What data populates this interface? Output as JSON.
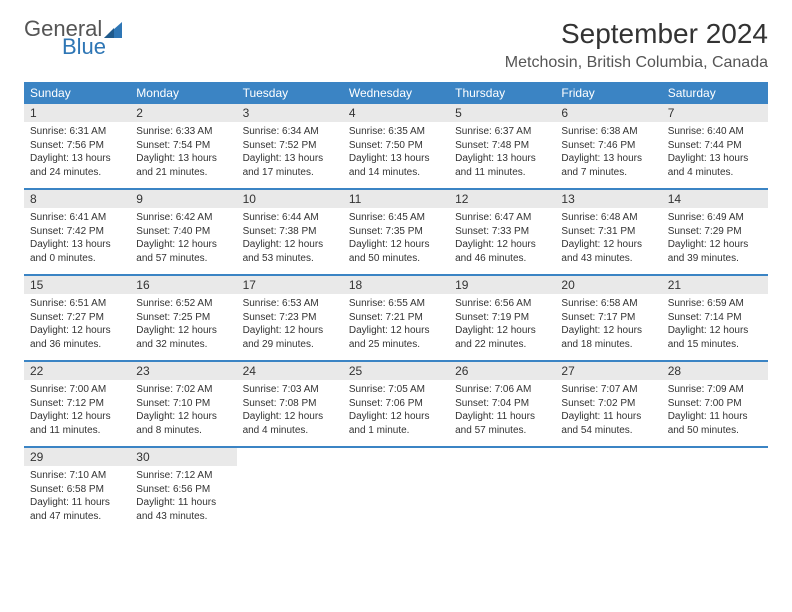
{
  "brand": {
    "text_general": "General",
    "text_blue": "Blue",
    "sail_color": "#2e76b5"
  },
  "title": "September 2024",
  "location": "Metchosin, British Columbia, Canada",
  "colors": {
    "header_bg": "#3b84c4",
    "header_text": "#ffffff",
    "daynum_bg": "#e9e9e9",
    "border": "#3b84c4"
  },
  "weekdays": [
    "Sunday",
    "Monday",
    "Tuesday",
    "Wednesday",
    "Thursday",
    "Friday",
    "Saturday"
  ],
  "weeks": [
    [
      {
        "n": "1",
        "sunrise": "Sunrise: 6:31 AM",
        "sunset": "Sunset: 7:56 PM",
        "d1": "Daylight: 13 hours",
        "d2": "and 24 minutes."
      },
      {
        "n": "2",
        "sunrise": "Sunrise: 6:33 AM",
        "sunset": "Sunset: 7:54 PM",
        "d1": "Daylight: 13 hours",
        "d2": "and 21 minutes."
      },
      {
        "n": "3",
        "sunrise": "Sunrise: 6:34 AM",
        "sunset": "Sunset: 7:52 PM",
        "d1": "Daylight: 13 hours",
        "d2": "and 17 minutes."
      },
      {
        "n": "4",
        "sunrise": "Sunrise: 6:35 AM",
        "sunset": "Sunset: 7:50 PM",
        "d1": "Daylight: 13 hours",
        "d2": "and 14 minutes."
      },
      {
        "n": "5",
        "sunrise": "Sunrise: 6:37 AM",
        "sunset": "Sunset: 7:48 PM",
        "d1": "Daylight: 13 hours",
        "d2": "and 11 minutes."
      },
      {
        "n": "6",
        "sunrise": "Sunrise: 6:38 AM",
        "sunset": "Sunset: 7:46 PM",
        "d1": "Daylight: 13 hours",
        "d2": "and 7 minutes."
      },
      {
        "n": "7",
        "sunrise": "Sunrise: 6:40 AM",
        "sunset": "Sunset: 7:44 PM",
        "d1": "Daylight: 13 hours",
        "d2": "and 4 minutes."
      }
    ],
    [
      {
        "n": "8",
        "sunrise": "Sunrise: 6:41 AM",
        "sunset": "Sunset: 7:42 PM",
        "d1": "Daylight: 13 hours",
        "d2": "and 0 minutes."
      },
      {
        "n": "9",
        "sunrise": "Sunrise: 6:42 AM",
        "sunset": "Sunset: 7:40 PM",
        "d1": "Daylight: 12 hours",
        "d2": "and 57 minutes."
      },
      {
        "n": "10",
        "sunrise": "Sunrise: 6:44 AM",
        "sunset": "Sunset: 7:38 PM",
        "d1": "Daylight: 12 hours",
        "d2": "and 53 minutes."
      },
      {
        "n": "11",
        "sunrise": "Sunrise: 6:45 AM",
        "sunset": "Sunset: 7:35 PM",
        "d1": "Daylight: 12 hours",
        "d2": "and 50 minutes."
      },
      {
        "n": "12",
        "sunrise": "Sunrise: 6:47 AM",
        "sunset": "Sunset: 7:33 PM",
        "d1": "Daylight: 12 hours",
        "d2": "and 46 minutes."
      },
      {
        "n": "13",
        "sunrise": "Sunrise: 6:48 AM",
        "sunset": "Sunset: 7:31 PM",
        "d1": "Daylight: 12 hours",
        "d2": "and 43 minutes."
      },
      {
        "n": "14",
        "sunrise": "Sunrise: 6:49 AM",
        "sunset": "Sunset: 7:29 PM",
        "d1": "Daylight: 12 hours",
        "d2": "and 39 minutes."
      }
    ],
    [
      {
        "n": "15",
        "sunrise": "Sunrise: 6:51 AM",
        "sunset": "Sunset: 7:27 PM",
        "d1": "Daylight: 12 hours",
        "d2": "and 36 minutes."
      },
      {
        "n": "16",
        "sunrise": "Sunrise: 6:52 AM",
        "sunset": "Sunset: 7:25 PM",
        "d1": "Daylight: 12 hours",
        "d2": "and 32 minutes."
      },
      {
        "n": "17",
        "sunrise": "Sunrise: 6:53 AM",
        "sunset": "Sunset: 7:23 PM",
        "d1": "Daylight: 12 hours",
        "d2": "and 29 minutes."
      },
      {
        "n": "18",
        "sunrise": "Sunrise: 6:55 AM",
        "sunset": "Sunset: 7:21 PM",
        "d1": "Daylight: 12 hours",
        "d2": "and 25 minutes."
      },
      {
        "n": "19",
        "sunrise": "Sunrise: 6:56 AM",
        "sunset": "Sunset: 7:19 PM",
        "d1": "Daylight: 12 hours",
        "d2": "and 22 minutes."
      },
      {
        "n": "20",
        "sunrise": "Sunrise: 6:58 AM",
        "sunset": "Sunset: 7:17 PM",
        "d1": "Daylight: 12 hours",
        "d2": "and 18 minutes."
      },
      {
        "n": "21",
        "sunrise": "Sunrise: 6:59 AM",
        "sunset": "Sunset: 7:14 PM",
        "d1": "Daylight: 12 hours",
        "d2": "and 15 minutes."
      }
    ],
    [
      {
        "n": "22",
        "sunrise": "Sunrise: 7:00 AM",
        "sunset": "Sunset: 7:12 PM",
        "d1": "Daylight: 12 hours",
        "d2": "and 11 minutes."
      },
      {
        "n": "23",
        "sunrise": "Sunrise: 7:02 AM",
        "sunset": "Sunset: 7:10 PM",
        "d1": "Daylight: 12 hours",
        "d2": "and 8 minutes."
      },
      {
        "n": "24",
        "sunrise": "Sunrise: 7:03 AM",
        "sunset": "Sunset: 7:08 PM",
        "d1": "Daylight: 12 hours",
        "d2": "and 4 minutes."
      },
      {
        "n": "25",
        "sunrise": "Sunrise: 7:05 AM",
        "sunset": "Sunset: 7:06 PM",
        "d1": "Daylight: 12 hours",
        "d2": "and 1 minute."
      },
      {
        "n": "26",
        "sunrise": "Sunrise: 7:06 AM",
        "sunset": "Sunset: 7:04 PM",
        "d1": "Daylight: 11 hours",
        "d2": "and 57 minutes."
      },
      {
        "n": "27",
        "sunrise": "Sunrise: 7:07 AM",
        "sunset": "Sunset: 7:02 PM",
        "d1": "Daylight: 11 hours",
        "d2": "and 54 minutes."
      },
      {
        "n": "28",
        "sunrise": "Sunrise: 7:09 AM",
        "sunset": "Sunset: 7:00 PM",
        "d1": "Daylight: 11 hours",
        "d2": "and 50 minutes."
      }
    ],
    [
      {
        "n": "29",
        "sunrise": "Sunrise: 7:10 AM",
        "sunset": "Sunset: 6:58 PM",
        "d1": "Daylight: 11 hours",
        "d2": "and 47 minutes."
      },
      {
        "n": "30",
        "sunrise": "Sunrise: 7:12 AM",
        "sunset": "Sunset: 6:56 PM",
        "d1": "Daylight: 11 hours",
        "d2": "and 43 minutes."
      },
      null,
      null,
      null,
      null,
      null
    ]
  ]
}
